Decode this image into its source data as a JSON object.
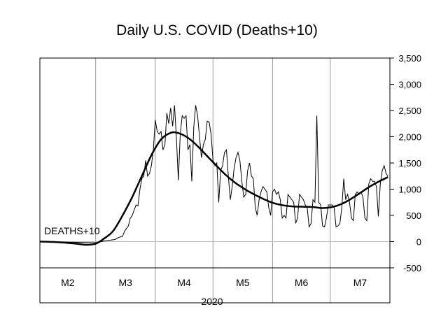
{
  "chart_data": {
    "type": "line",
    "title": "Daily U.S. COVID (Deaths+10)",
    "xlabel": "2020",
    "ylabel": "",
    "ylim": [
      -500,
      3500
    ],
    "y_ticks": [
      -500,
      0,
      500,
      1000,
      1500,
      2000,
      2500,
      3000,
      3500
    ],
    "y_tick_labels": [
      "-500",
      "0",
      "500",
      "1,000",
      "1,500",
      "2,000",
      "2,500",
      "3,000",
      "3,500"
    ],
    "y_axis_side": "right",
    "grid": "vertical month separators",
    "month_labels": [
      "M2",
      "M3",
      "M4",
      "M5",
      "M6",
      "M7"
    ],
    "month_starts": [
      "2020-02-01",
      "2020-03-01",
      "2020-04-01",
      "2020-05-01",
      "2020-06-01",
      "2020-07-01"
    ],
    "xlim": [
      "2020-02-01",
      "2020-08-01"
    ],
    "annotation": "DEATHS+10",
    "series": [
      {
        "name": "",
        "style": "thin",
        "color": "#000000",
        "points": [
          [
            "2020-02-01",
            0
          ],
          [
            "2020-02-15",
            -10
          ],
          [
            "2020-02-28",
            -20
          ],
          [
            "2020-03-01",
            -20
          ],
          [
            "2020-03-03",
            -10
          ],
          [
            "2020-03-05",
            10
          ],
          [
            "2020-03-07",
            20
          ],
          [
            "2020-03-09",
            30
          ],
          [
            "2020-03-11",
            40
          ],
          [
            "2020-03-13",
            80
          ],
          [
            "2020-03-15",
            100
          ],
          [
            "2020-03-16",
            200
          ],
          [
            "2020-03-17",
            250
          ],
          [
            "2020-03-18",
            300
          ],
          [
            "2020-03-19",
            450
          ],
          [
            "2020-03-20",
            500
          ],
          [
            "2020-03-21",
            600
          ],
          [
            "2020-03-22",
            700
          ],
          [
            "2020-03-23",
            680
          ],
          [
            "2020-03-24",
            1000
          ],
          [
            "2020-03-25",
            1200
          ],
          [
            "2020-03-26",
            1250
          ],
          [
            "2020-03-27",
            1550
          ],
          [
            "2020-03-28",
            1250
          ],
          [
            "2020-03-29",
            1300
          ],
          [
            "2020-03-30",
            1450
          ],
          [
            "2020-03-31",
            1750
          ],
          [
            "2020-04-01",
            2320
          ],
          [
            "2020-04-02",
            2100
          ],
          [
            "2020-04-03",
            2050
          ],
          [
            "2020-04-04",
            2100
          ],
          [
            "2020-04-05",
            1750
          ],
          [
            "2020-04-06",
            1850
          ],
          [
            "2020-04-07",
            2450
          ],
          [
            "2020-04-08",
            2250
          ],
          [
            "2020-04-09",
            2550
          ],
          [
            "2020-04-10",
            2200
          ],
          [
            "2020-04-11",
            2600
          ],
          [
            "2020-04-12",
            1950
          ],
          [
            "2020-04-13",
            1170
          ],
          [
            "2020-04-14",
            2050
          ],
          [
            "2020-04-15",
            2400
          ],
          [
            "2020-04-16",
            2350
          ],
          [
            "2020-04-17",
            2400
          ],
          [
            "2020-04-18",
            1750
          ],
          [
            "2020-04-19",
            1850
          ],
          [
            "2020-04-20",
            1150
          ],
          [
            "2020-04-21",
            2180
          ],
          [
            "2020-04-22",
            2600
          ],
          [
            "2020-04-23",
            2400
          ],
          [
            "2020-04-24",
            2000
          ],
          [
            "2020-04-25",
            1600
          ],
          [
            "2020-04-26",
            1850
          ],
          [
            "2020-04-27",
            1950
          ],
          [
            "2020-04-28",
            2300
          ],
          [
            "2020-04-29",
            2280
          ],
          [
            "2020-04-30",
            2050
          ],
          [
            "2020-05-01",
            1550
          ],
          [
            "2020-05-02",
            1450
          ],
          [
            "2020-05-03",
            1500
          ],
          [
            "2020-05-04",
            750
          ],
          [
            "2020-05-05",
            1350
          ],
          [
            "2020-05-06",
            1450
          ],
          [
            "2020-05-07",
            1700
          ],
          [
            "2020-05-08",
            1750
          ],
          [
            "2020-05-09",
            1250
          ],
          [
            "2020-05-10",
            800
          ],
          [
            "2020-05-11",
            1050
          ],
          [
            "2020-05-12",
            1400
          ],
          [
            "2020-05-13",
            1600
          ],
          [
            "2020-05-14",
            1700
          ],
          [
            "2020-05-15",
            1550
          ],
          [
            "2020-05-16",
            1150
          ],
          [
            "2020-05-17",
            850
          ],
          [
            "2020-05-18",
            900
          ],
          [
            "2020-05-19",
            1350
          ],
          [
            "2020-05-20",
            1500
          ],
          [
            "2020-05-21",
            1250
          ],
          [
            "2020-05-22",
            1200
          ],
          [
            "2020-05-23",
            650
          ],
          [
            "2020-05-24",
            500
          ],
          [
            "2020-05-25",
            800
          ],
          [
            "2020-05-26",
            950
          ],
          [
            "2020-05-27",
            1050
          ],
          [
            "2020-05-28",
            1000
          ],
          [
            "2020-05-29",
            950
          ],
          [
            "2020-05-30",
            650
          ],
          [
            "2020-05-31",
            500
          ],
          [
            "2020-06-01",
            950
          ],
          [
            "2020-06-02",
            1000
          ],
          [
            "2020-06-03",
            900
          ],
          [
            "2020-06-04",
            950
          ],
          [
            "2020-06-05",
            800
          ],
          [
            "2020-06-06",
            450
          ],
          [
            "2020-06-07",
            500
          ],
          [
            "2020-06-08",
            450
          ],
          [
            "2020-06-09",
            900
          ],
          [
            "2020-06-10",
            850
          ],
          [
            "2020-06-11",
            800
          ],
          [
            "2020-06-12",
            750
          ],
          [
            "2020-06-13",
            350
          ],
          [
            "2020-06-14",
            450
          ],
          [
            "2020-06-15",
            900
          ],
          [
            "2020-06-16",
            850
          ],
          [
            "2020-06-17",
            800
          ],
          [
            "2020-06-18",
            700
          ],
          [
            "2020-06-19",
            650
          ],
          [
            "2020-06-20",
            280
          ],
          [
            "2020-06-21",
            350
          ],
          [
            "2020-06-22",
            800
          ],
          [
            "2020-06-23",
            750
          ],
          [
            "2020-06-24",
            2400
          ],
          [
            "2020-06-25",
            750
          ],
          [
            "2020-06-26",
            700
          ],
          [
            "2020-06-27",
            300
          ],
          [
            "2020-06-28",
            280
          ],
          [
            "2020-06-29",
            450
          ],
          [
            "2020-06-30",
            700
          ],
          [
            "2020-07-01",
            700
          ],
          [
            "2020-07-02",
            700
          ],
          [
            "2020-07-03",
            650
          ],
          [
            "2020-07-04",
            280
          ],
          [
            "2020-07-05",
            300
          ],
          [
            "2020-07-06",
            350
          ],
          [
            "2020-07-07",
            650
          ],
          [
            "2020-07-08",
            1200
          ],
          [
            "2020-07-09",
            800
          ],
          [
            "2020-07-10",
            900
          ],
          [
            "2020-07-11",
            750
          ],
          [
            "2020-07-12",
            450
          ],
          [
            "2020-07-13",
            400
          ],
          [
            "2020-07-14",
            900
          ],
          [
            "2020-07-15",
            950
          ],
          [
            "2020-07-16",
            900
          ],
          [
            "2020-07-17",
            950
          ],
          [
            "2020-07-18",
            850
          ],
          [
            "2020-07-19",
            450
          ],
          [
            "2020-07-20",
            400
          ],
          [
            "2020-07-21",
            1100
          ],
          [
            "2020-07-22",
            1200
          ],
          [
            "2020-07-23",
            1150
          ],
          [
            "2020-07-24",
            1150
          ],
          [
            "2020-07-25",
            1050
          ],
          [
            "2020-07-26",
            480
          ],
          [
            "2020-07-27",
            1100
          ],
          [
            "2020-07-28",
            1350
          ],
          [
            "2020-07-29",
            1450
          ],
          [
            "2020-07-30",
            1300
          ],
          [
            "2020-07-31",
            1250
          ]
        ]
      },
      {
        "name": "",
        "style": "smooth-thick",
        "color": "#000000",
        "points": [
          [
            "2020-02-01",
            0
          ],
          [
            "2020-02-10",
            -10
          ],
          [
            "2020-02-20",
            -40
          ],
          [
            "2020-02-25",
            -60
          ],
          [
            "2020-03-01",
            -40
          ],
          [
            "2020-03-05",
            50
          ],
          [
            "2020-03-10",
            200
          ],
          [
            "2020-03-15",
            500
          ],
          [
            "2020-03-20",
            850
          ],
          [
            "2020-03-25",
            1250
          ],
          [
            "2020-03-30",
            1650
          ],
          [
            "2020-04-04",
            1950
          ],
          [
            "2020-04-09",
            2075
          ],
          [
            "2020-04-13",
            2070
          ],
          [
            "2020-04-18",
            1980
          ],
          [
            "2020-04-23",
            1820
          ],
          [
            "2020-04-28",
            1630
          ],
          [
            "2020-05-03",
            1440
          ],
          [
            "2020-05-08",
            1260
          ],
          [
            "2020-05-13",
            1110
          ],
          [
            "2020-05-18",
            990
          ],
          [
            "2020-05-23",
            890
          ],
          [
            "2020-05-28",
            800
          ],
          [
            "2020-06-02",
            730
          ],
          [
            "2020-06-07",
            690
          ],
          [
            "2020-06-12",
            670
          ],
          [
            "2020-06-17",
            665
          ],
          [
            "2020-06-22",
            660
          ],
          [
            "2020-06-27",
            640
          ],
          [
            "2020-07-02",
            660
          ],
          [
            "2020-07-07",
            720
          ],
          [
            "2020-07-12",
            820
          ],
          [
            "2020-07-17",
            940
          ],
          [
            "2020-07-22",
            1060
          ],
          [
            "2020-07-27",
            1160
          ],
          [
            "2020-07-31",
            1230
          ]
        ]
      }
    ]
  }
}
